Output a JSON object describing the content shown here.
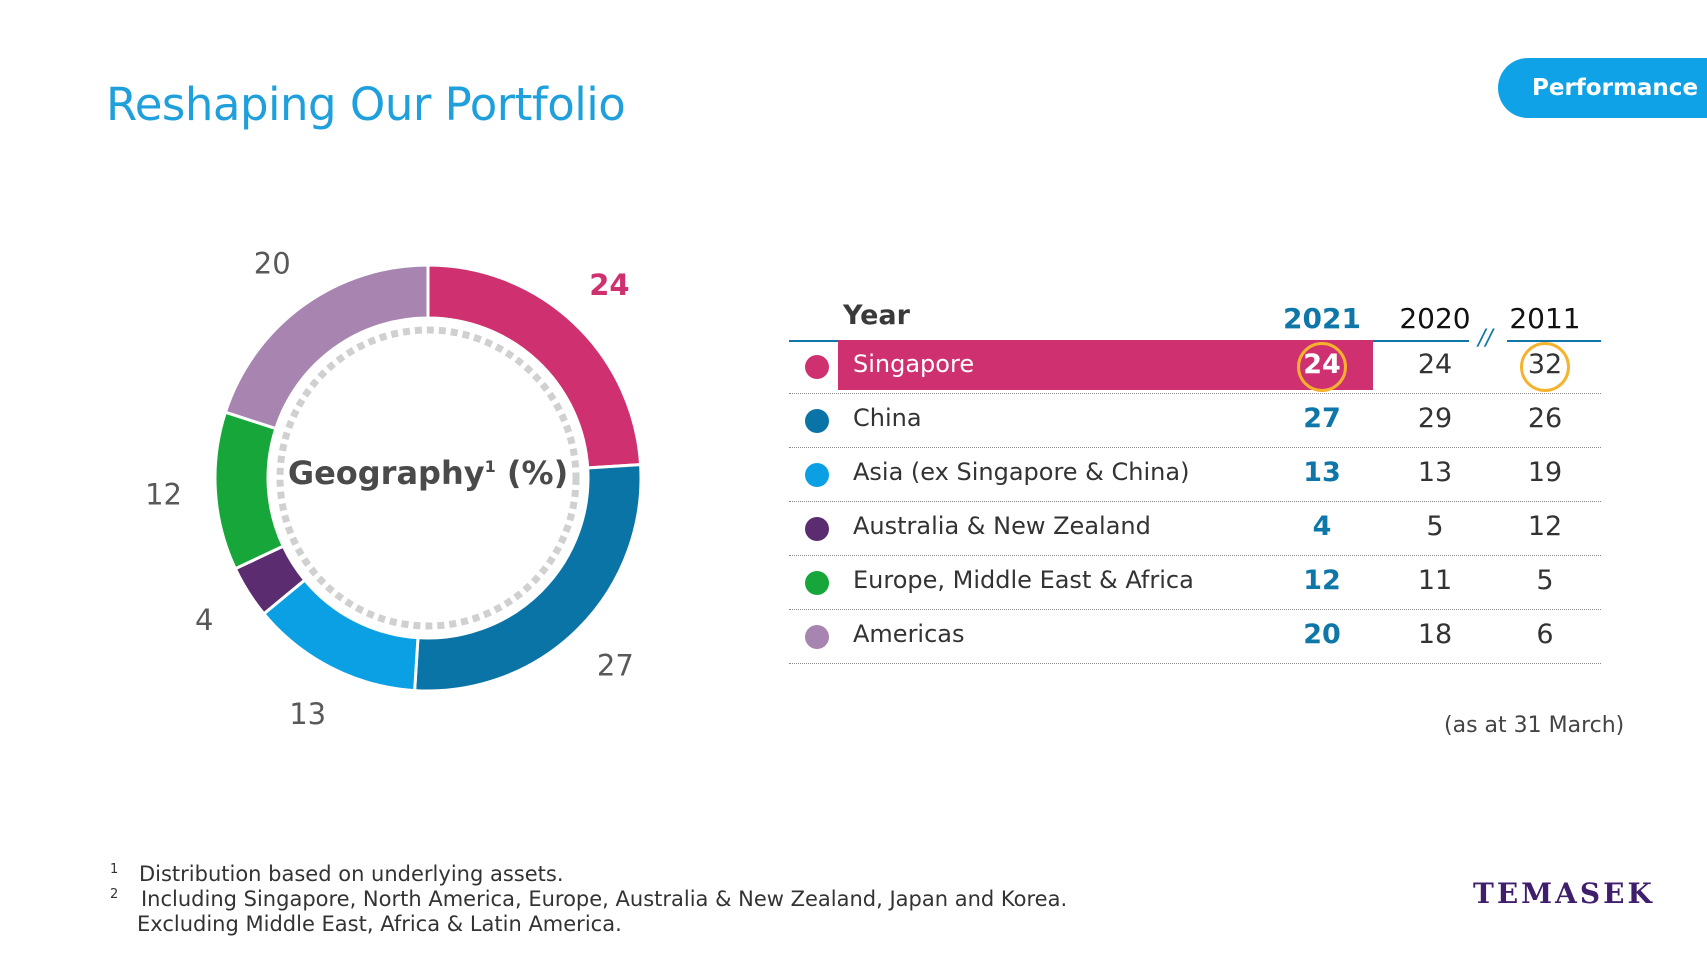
{
  "header": {
    "title": "Reshaping Our Portfolio",
    "tag": "Performance"
  },
  "chart_data": {
    "type": "pie",
    "donut": true,
    "title": "Geography",
    "title_suffix": "(%)",
    "footnote_ref": "1",
    "categories": [
      "Singapore",
      "China",
      "Asia (ex Singapore & China)",
      "Australia & New Zealand",
      "Europe, Middle East & Africa",
      "Americas"
    ],
    "values": [
      24,
      27,
      13,
      4,
      12,
      20
    ],
    "colors": [
      "#cf3170",
      "#0b74a6",
      "#0aa0e3",
      "#5b2c6f",
      "#17a639",
      "#a785b0"
    ],
    "labels": [
      "24",
      "27",
      "13",
      "4",
      "12",
      "20"
    ],
    "highlight": "Singapore"
  },
  "table": {
    "header": {
      "year": "Year",
      "y2021": "2021",
      "y2020": "2020",
      "sep": "//",
      "y2011": "2011"
    },
    "rows": [
      {
        "name": "Singapore",
        "v2021": "24",
        "v2020": "24",
        "v2011": "32",
        "color": "#cf3170"
      },
      {
        "name": "China",
        "v2021": "27",
        "v2020": "29",
        "v2011": "26",
        "color": "#0b74a6"
      },
      {
        "name": "Asia (ex Singapore & China)",
        "v2021": "13",
        "v2020": "13",
        "v2011": "19",
        "color": "#0aa0e3"
      },
      {
        "name": "Australia & New Zealand",
        "v2021": "4",
        "v2020": "5",
        "v2011": "12",
        "color": "#5b2c6f"
      },
      {
        "name": "Europe, Middle East & Africa",
        "v2021": "12",
        "v2020": "11",
        "v2011": "5",
        "color": "#17a639"
      },
      {
        "name": "Americas",
        "v2021": "20",
        "v2020": "18",
        "v2011": "6",
        "color": "#a785b0"
      }
    ],
    "note": "(as at 31 March)"
  },
  "footnotes": {
    "n1_mark": "1",
    "n1": "Distribution based on underlying assets.",
    "n2_mark": "2",
    "n2a": "Including Singapore, North America, Europe, Australia & New Zealand, Japan and Korea.",
    "n2b": "Excluding Middle East, Africa & Latin America."
  },
  "brand": {
    "logo": "TEMASEK"
  }
}
